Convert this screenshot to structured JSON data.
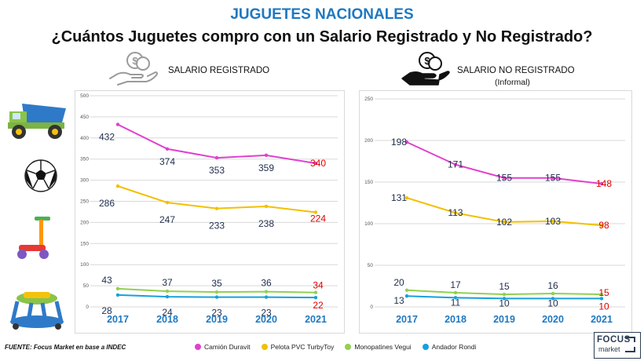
{
  "header": {
    "title": "JUGUETES NACIONALES",
    "subtitle": "¿Cuántos Juguetes compro con un Salario Registrado y No Registrado?"
  },
  "panels": {
    "left_label": "SALARIO REGISTRADO",
    "right_label": "SALARIO NO REGISTRADO",
    "right_sublabel": "(Informal)"
  },
  "footer": {
    "source": "FUENTE: Focus Market en base a INDEC",
    "logo_top": "FOCUS",
    "logo_bottom": "market"
  },
  "colors": {
    "Camión Duravit": "#e040d0",
    "Pelota PVC TurbyToy": "#f2c000",
    "Monopatines Vegui": "#92d050",
    "Andador Rondi": "#17a0dc",
    "last_label": "#e00000",
    "year_label": "#1f78c1",
    "value_label": "#1f2d4d"
  },
  "chart_data": [
    {
      "type": "line",
      "title": "SALARIO REGISTRADO",
      "categories": [
        "2017",
        "2018",
        "2019",
        "2020",
        "2021"
      ],
      "ylim": [
        0,
        500
      ],
      "yticks": [
        0,
        50,
        100,
        150,
        200,
        250,
        300,
        350,
        400,
        450,
        500
      ],
      "grid": true,
      "series": [
        {
          "name": "Camión Duravit",
          "values": [
            432,
            374,
            353,
            359,
            340
          ]
        },
        {
          "name": "Pelota PVC TurbyToy",
          "values": [
            286,
            247,
            233,
            238,
            224
          ]
        },
        {
          "name": "Monopatines Vegui",
          "values": [
            43,
            37,
            35,
            36,
            34
          ]
        },
        {
          "name": "Andador Rondi",
          "values": [
            28,
            24,
            23,
            23,
            22
          ]
        }
      ]
    },
    {
      "type": "line",
      "title": "SALARIO NO REGISTRADO (Informal)",
      "categories": [
        "2017",
        "2018",
        "2019",
        "2020",
        "2021"
      ],
      "ylim": [
        0,
        250
      ],
      "yticks": [
        0,
        50,
        100,
        150,
        200,
        250
      ],
      "grid": true,
      "series": [
        {
          "name": "Camión Duravit",
          "values": [
            198,
            171,
            155,
            155,
            148
          ]
        },
        {
          "name": "Pelota PVC TurbyToy",
          "values": [
            131,
            113,
            102,
            103,
            98
          ]
        },
        {
          "name": "Monopatines Vegui",
          "values": [
            20,
            17,
            15,
            16,
            15
          ]
        },
        {
          "name": "Andador Rondi",
          "values": [
            13,
            11,
            10,
            10,
            10
          ]
        }
      ]
    }
  ],
  "legend": [
    "Camión Duravit",
    "Pelota PVC TurbyToy",
    "Monopatines Vegui",
    "Andador Rondi"
  ]
}
